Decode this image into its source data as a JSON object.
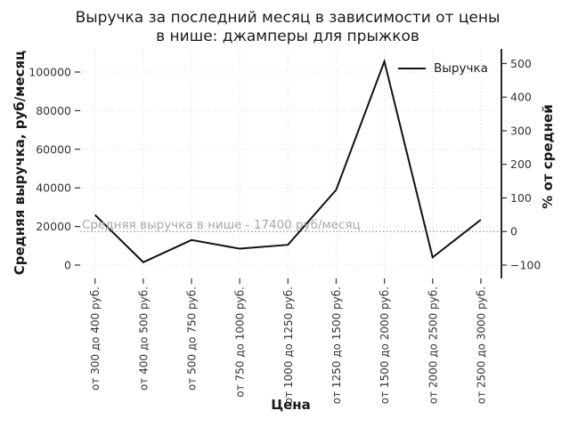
{
  "chart_data": {
    "type": "line",
    "title": "Выручка за последний месяц в зависимости от цены\nв нише: джамперы для прыжков",
    "xlabel": "Цена",
    "ylabel_left": "Средняя выручка, руб/месяц",
    "ylabel_right": "% от средней",
    "grid": true,
    "legend_position": "upper right",
    "legend": [
      {
        "name": "Выручка",
        "color": "#111111"
      }
    ],
    "categories": [
      "от 300 до 400 руб.",
      "от 400 до 500 руб.",
      "от 500 до 750 руб.",
      "от 750 до 1000 руб.",
      "от 1000 до 1250 руб.",
      "от 1250 до 1500 руб.",
      "от 1500 до 2000 руб.",
      "от 2000 до 2500 руб.",
      "от 2500 до 3000 руб."
    ],
    "series": [
      {
        "name": "Выручка",
        "values": [
          26000,
          1500,
          13000,
          8500,
          10500,
          39000,
          105500,
          4000,
          23500
        ]
      }
    ],
    "yticks_left": {
      "values": [
        0,
        20000,
        40000,
        60000,
        80000,
        100000
      ],
      "labels": [
        "0",
        "20000",
        "40000",
        "60000",
        "80000",
        "100000"
      ]
    },
    "yticks_right": {
      "values": [
        -100,
        0,
        100,
        200,
        300,
        400,
        500
      ],
      "labels": [
        "−100",
        "0",
        "100",
        "200",
        "300",
        "400",
        "500"
      ]
    },
    "ylim_left": [
      -8000,
      113000
    ],
    "average_line": {
      "value": 17400,
      "label": "Средняя выручка в нише - 17400 руб/месяц"
    },
    "colors": {
      "line": "#111111",
      "grid": "#d7d7d7",
      "avg_line": "#aaaaaa",
      "annotation": "#a8a8a8",
      "tick_text": "#333333",
      "spine": "#111111"
    }
  }
}
